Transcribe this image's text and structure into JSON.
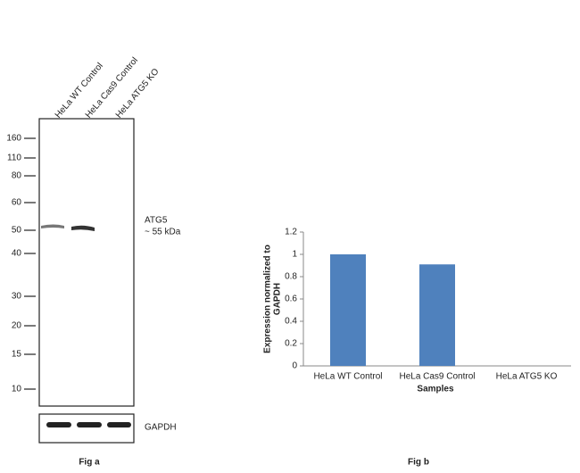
{
  "blot": {
    "lanes": [
      "HeLa WT Control",
      "HeLa Cas9 Control",
      "HeLa ATG5 KO"
    ],
    "markers": [
      "160",
      "110",
      "80",
      "60",
      "50",
      "40",
      "30",
      "20",
      "15",
      "10"
    ],
    "band_label": "ATG5",
    "band_size": "~ 55 kDa",
    "loading_control": "GAPDH",
    "caption": "Fig a"
  },
  "chart_data": {
    "type": "bar",
    "caption": "Fig b",
    "categories": [
      "HeLa WT Control",
      "HeLa Cas9 Control",
      "HeLa ATG5 KO"
    ],
    "values": [
      1,
      0.91,
      0
    ],
    "color": "#4f81bd",
    "ylim": [
      0,
      1.2
    ],
    "yticks": [
      0,
      0.2,
      0.4,
      0.6,
      0.8,
      1,
      1.2
    ],
    "ylabel": [
      "Expression  normalized to",
      "GAPDH"
    ],
    "xlabel": "Samples"
  }
}
